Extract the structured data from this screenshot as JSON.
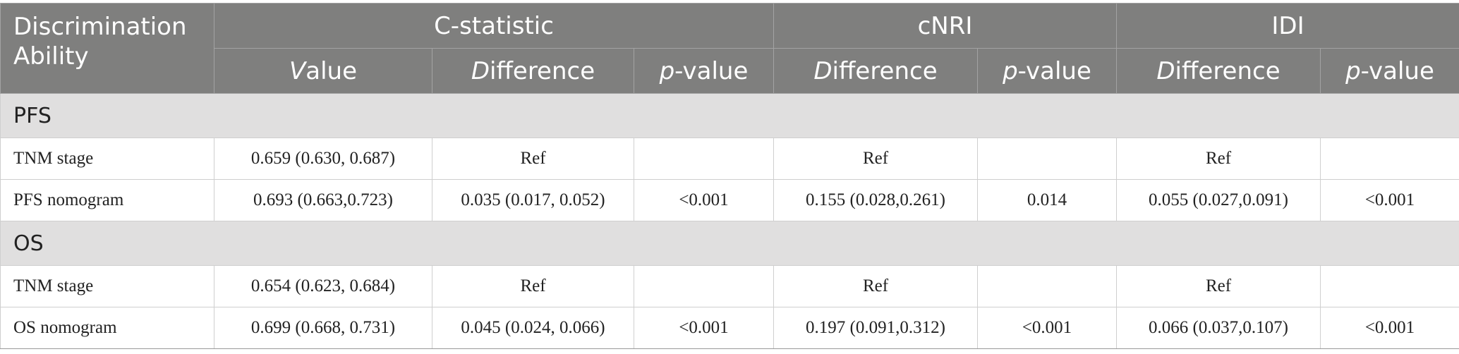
{
  "header": {
    "row1": [
      "Discrimination Ability",
      "C-statistic",
      "cNRI",
      "IDI"
    ],
    "row2": [
      "Value",
      "Difference",
      "p-value",
      "Difference",
      "p-value",
      "Difference",
      "p-value"
    ]
  },
  "sections": [
    {
      "title": "PFS",
      "rows": [
        [
          "TNM stage",
          "0.659 (0.630, 0.687)",
          "Ref",
          null,
          "Ref",
          null,
          "Ref",
          null
        ],
        [
          "PFS nomogram",
          "0.693 (0.663,0.723)",
          "0.035 (0.017, 0.052)",
          "<0.001",
          "0.155 (0.028,0.261)",
          "0.014",
          "0.055 (0.027,0.091)",
          "<0.001"
        ]
      ]
    },
    {
      "title": "OS",
      "rows": [
        [
          "TNM stage",
          "0.654 (0.623, 0.684)",
          "Ref",
          null,
          "Ref",
          null,
          "Ref",
          null
        ],
        [
          "OS nomogram",
          "0.699 (0.668, 0.731)",
          "0.045 (0.024, 0.066)",
          "<0.001",
          "0.197 (0.091,0.312)",
          "<0.001",
          "0.066 (0.037,0.107)",
          "<0.001"
        ]
      ]
    }
  ]
}
